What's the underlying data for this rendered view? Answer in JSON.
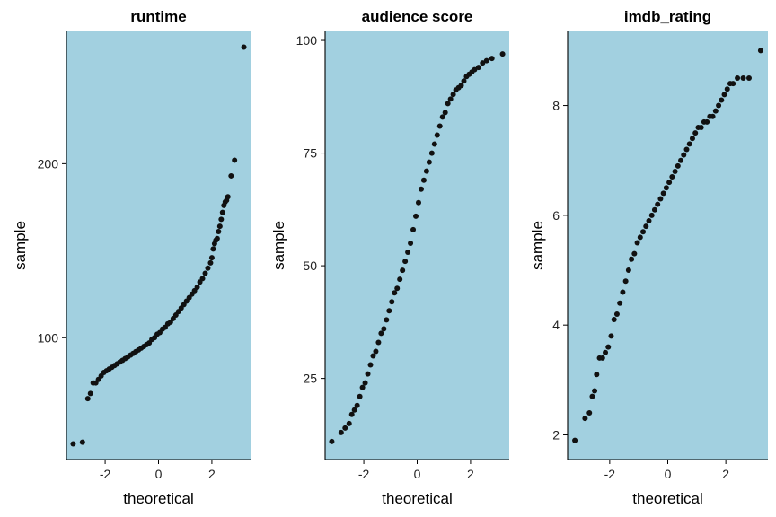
{
  "chart_data": [
    {
      "type": "scatter",
      "title": "runtime",
      "xlabel": "theoretical",
      "ylabel": "sample",
      "xlim": [
        -3.45,
        3.45
      ],
      "ylim": [
        30,
        276
      ],
      "xticks": [
        -2,
        0,
        2
      ],
      "xtick_labels": [
        "-2",
        "0",
        "2"
      ],
      "yticks": [
        100,
        200
      ],
      "ytick_labels": [
        "100",
        "200"
      ],
      "panel_background": "#a2d0e0",
      "point_color": "#111111",
      "grid": false,
      "points": [
        [
          -3.2,
          39
        ],
        [
          -2.85,
          40
        ],
        [
          -2.65,
          65
        ],
        [
          -2.55,
          68
        ],
        [
          -2.45,
          74
        ],
        [
          -2.35,
          74
        ],
        [
          -2.25,
          76
        ],
        [
          -2.15,
          78
        ],
        [
          -2.05,
          80
        ],
        [
          -1.95,
          81
        ],
        [
          -1.85,
          82
        ],
        [
          -1.75,
          83
        ],
        [
          -1.65,
          84
        ],
        [
          -1.55,
          85
        ],
        [
          -1.45,
          86
        ],
        [
          -1.35,
          87
        ],
        [
          -1.25,
          88
        ],
        [
          -1.15,
          89
        ],
        [
          -1.05,
          90
        ],
        [
          -0.95,
          91
        ],
        [
          -0.85,
          92
        ],
        [
          -0.75,
          93
        ],
        [
          -0.65,
          94
        ],
        [
          -0.55,
          95
        ],
        [
          -0.45,
          96
        ],
        [
          -0.35,
          97
        ],
        [
          -0.25,
          99
        ],
        [
          -0.15,
          100
        ],
        [
          -0.05,
          102
        ],
        [
          0.05,
          103
        ],
        [
          0.15,
          105
        ],
        [
          0.25,
          106
        ],
        [
          0.35,
          108
        ],
        [
          0.45,
          109
        ],
        [
          0.55,
          111
        ],
        [
          0.65,
          113
        ],
        [
          0.75,
          115
        ],
        [
          0.85,
          117
        ],
        [
          0.95,
          119
        ],
        [
          1.05,
          121
        ],
        [
          1.15,
          123
        ],
        [
          1.25,
          125
        ],
        [
          1.35,
          127
        ],
        [
          1.45,
          129
        ],
        [
          1.55,
          132
        ],
        [
          1.65,
          134
        ],
        [
          1.75,
          137
        ],
        [
          1.85,
          140
        ],
        [
          1.95,
          143
        ],
        [
          2.0,
          146
        ],
        [
          2.05,
          151
        ],
        [
          2.1,
          154
        ],
        [
          2.15,
          156
        ],
        [
          2.2,
          157
        ],
        [
          2.25,
          161
        ],
        [
          2.3,
          164
        ],
        [
          2.35,
          168
        ],
        [
          2.4,
          172
        ],
        [
          2.45,
          176
        ],
        [
          2.5,
          178
        ],
        [
          2.55,
          179
        ],
        [
          2.6,
          181
        ],
        [
          2.72,
          193
        ],
        [
          2.85,
          202
        ],
        [
          3.2,
          267
        ]
      ]
    },
    {
      "type": "scatter",
      "title": "audience score",
      "xlabel": "theoretical",
      "ylabel": "sample",
      "xlim": [
        -3.45,
        3.45
      ],
      "ylim": [
        7,
        102
      ],
      "xticks": [
        -2,
        0,
        2
      ],
      "xtick_labels": [
        "-2",
        "0",
        "2"
      ],
      "yticks": [
        25,
        50,
        75,
        100
      ],
      "ytick_labels": [
        "25",
        "50",
        "75",
        "100"
      ],
      "panel_background": "#a2d0e0",
      "point_color": "#111111",
      "grid": false,
      "points": [
        [
          -3.2,
          11
        ],
        [
          -2.85,
          13
        ],
        [
          -2.7,
          14
        ],
        [
          -2.55,
          15
        ],
        [
          -2.45,
          17
        ],
        [
          -2.35,
          18
        ],
        [
          -2.25,
          19
        ],
        [
          -2.15,
          21
        ],
        [
          -2.05,
          23
        ],
        [
          -1.95,
          24
        ],
        [
          -1.85,
          26
        ],
        [
          -1.75,
          28
        ],
        [
          -1.65,
          30
        ],
        [
          -1.55,
          31
        ],
        [
          -1.45,
          33
        ],
        [
          -1.35,
          35
        ],
        [
          -1.25,
          36
        ],
        [
          -1.15,
          38
        ],
        [
          -1.05,
          40
        ],
        [
          -0.95,
          42
        ],
        [
          -0.85,
          44
        ],
        [
          -0.75,
          45
        ],
        [
          -0.65,
          47
        ],
        [
          -0.55,
          49
        ],
        [
          -0.45,
          51
        ],
        [
          -0.35,
          53
        ],
        [
          -0.25,
          55
        ],
        [
          -0.15,
          58
        ],
        [
          -0.05,
          61
        ],
        [
          0.05,
          64
        ],
        [
          0.15,
          67
        ],
        [
          0.25,
          69
        ],
        [
          0.35,
          71
        ],
        [
          0.45,
          73
        ],
        [
          0.55,
          75
        ],
        [
          0.65,
          77
        ],
        [
          0.75,
          79
        ],
        [
          0.85,
          81
        ],
        [
          0.95,
          83
        ],
        [
          1.05,
          84
        ],
        [
          1.15,
          86
        ],
        [
          1.25,
          87
        ],
        [
          1.35,
          88
        ],
        [
          1.45,
          89
        ],
        [
          1.55,
          89.5
        ],
        [
          1.65,
          90
        ],
        [
          1.75,
          91
        ],
        [
          1.85,
          92
        ],
        [
          1.95,
          92.5
        ],
        [
          2.05,
          93
        ],
        [
          2.15,
          93.5
        ],
        [
          2.3,
          94
        ],
        [
          2.45,
          95
        ],
        [
          2.6,
          95.5
        ],
        [
          2.8,
          96
        ],
        [
          3.2,
          97
        ]
      ]
    },
    {
      "type": "scatter",
      "title": "imdb_rating",
      "xlabel": "theoretical",
      "ylabel": "sample",
      "xlim": [
        -3.45,
        3.45
      ],
      "ylim": [
        1.55,
        9.35
      ],
      "xticks": [
        -2,
        0,
        2
      ],
      "xtick_labels": [
        "-2",
        "0",
        "2"
      ],
      "yticks": [
        2,
        4,
        6,
        8
      ],
      "ytick_labels": [
        "2",
        "4",
        "6",
        "8"
      ],
      "panel_background": "#a2d0e0",
      "point_color": "#111111",
      "grid": false,
      "points": [
        [
          -3.2,
          1.9
        ],
        [
          -2.85,
          2.3
        ],
        [
          -2.7,
          2.4
        ],
        [
          -2.6,
          2.7
        ],
        [
          -2.52,
          2.8
        ],
        [
          -2.45,
          3.1
        ],
        [
          -2.35,
          3.4
        ],
        [
          -2.25,
          3.4
        ],
        [
          -2.15,
          3.5
        ],
        [
          -2.05,
          3.6
        ],
        [
          -1.95,
          3.8
        ],
        [
          -1.85,
          4.1
        ],
        [
          -1.75,
          4.2
        ],
        [
          -1.65,
          4.4
        ],
        [
          -1.55,
          4.6
        ],
        [
          -1.45,
          4.8
        ],
        [
          -1.35,
          5.0
        ],
        [
          -1.25,
          5.2
        ],
        [
          -1.15,
          5.3
        ],
        [
          -1.05,
          5.5
        ],
        [
          -0.95,
          5.6
        ],
        [
          -0.85,
          5.7
        ],
        [
          -0.75,
          5.8
        ],
        [
          -0.65,
          5.9
        ],
        [
          -0.55,
          6.0
        ],
        [
          -0.45,
          6.1
        ],
        [
          -0.35,
          6.2
        ],
        [
          -0.25,
          6.3
        ],
        [
          -0.15,
          6.4
        ],
        [
          -0.05,
          6.5
        ],
        [
          0.05,
          6.6
        ],
        [
          0.15,
          6.7
        ],
        [
          0.25,
          6.8
        ],
        [
          0.35,
          6.9
        ],
        [
          0.45,
          7.0
        ],
        [
          0.55,
          7.1
        ],
        [
          0.65,
          7.2
        ],
        [
          0.75,
          7.3
        ],
        [
          0.85,
          7.4
        ],
        [
          0.95,
          7.5
        ],
        [
          1.05,
          7.6
        ],
        [
          1.15,
          7.6
        ],
        [
          1.25,
          7.7
        ],
        [
          1.35,
          7.7
        ],
        [
          1.45,
          7.8
        ],
        [
          1.55,
          7.8
        ],
        [
          1.65,
          7.9
        ],
        [
          1.75,
          8.0
        ],
        [
          1.85,
          8.1
        ],
        [
          1.95,
          8.2
        ],
        [
          2.05,
          8.3
        ],
        [
          2.15,
          8.4
        ],
        [
          2.25,
          8.4
        ],
        [
          2.4,
          8.5
        ],
        [
          2.6,
          8.5
        ],
        [
          2.8,
          8.5
        ],
        [
          3.2,
          9.0
        ]
      ]
    }
  ]
}
